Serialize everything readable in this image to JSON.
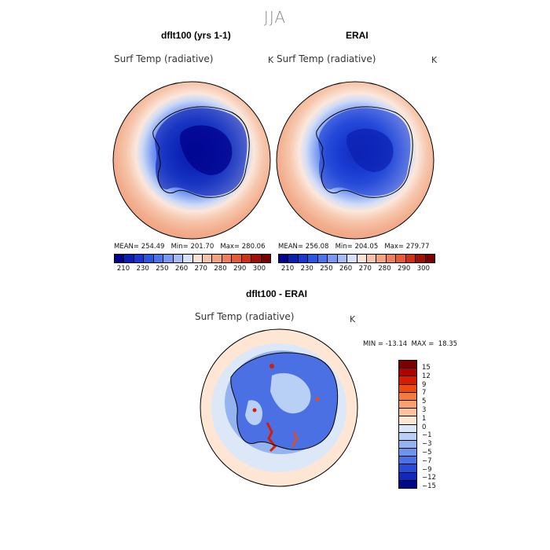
{
  "header": {
    "season": "JJA"
  },
  "panels": [
    {
      "title": "dflt100 (yrs 1-1)",
      "variable": "Surf Temp (radiative)",
      "units": "K",
      "stats": {
        "mean_label": "MEAN=",
        "mean": "254.49",
        "min_label": "Min=",
        "min": "201.70",
        "max_label": "Max=",
        "max": "280.06"
      }
    },
    {
      "title": "ERAI",
      "variable": "Surf Temp (radiative)",
      "units": "K",
      "stats": {
        "mean_label": "MEAN=",
        "mean": "256.08",
        "min_label": "Min=",
        "min": "204.05",
        "max_label": "Max=",
        "max": "279.77"
      }
    }
  ],
  "shared_colorbar": {
    "tick_labels": [
      "210",
      "230",
      "250",
      "260",
      "270",
      "280",
      "290",
      "300"
    ],
    "colors": [
      "#00008b",
      "#0a1fb0",
      "#1737d0",
      "#2a56e0",
      "#4b74ec",
      "#7898f2",
      "#a7bcf5",
      "#d6e0f7",
      "#f8e2d5",
      "#f5c4a8",
      "#f2a37f",
      "#ee7f5a",
      "#e65a38",
      "#cf3018",
      "#a00f08",
      "#7a0000"
    ]
  },
  "diff_panel": {
    "title": "dflt100 - ERAI",
    "variable": "Surf Temp (radiative)",
    "units": "K",
    "minmax": {
      "min_label": "MIN =",
      "min": "-13.14",
      "max_label": "MAX =",
      "max": "18.35"
    },
    "colorbar": {
      "tick_labels": [
        "15",
        "12",
        "9",
        "7",
        "5",
        "3",
        "1",
        "0",
        "−1",
        "−3",
        "−5",
        "−7",
        "−9",
        "−12",
        "−15"
      ],
      "colors": [
        "#7a0000",
        "#b00000",
        "#d81c00",
        "#ee4a10",
        "#f57a40",
        "#f8a070",
        "#fac4a0",
        "#fde6d4",
        "#dce8f8",
        "#b8d0f5",
        "#94b4f0",
        "#6f94ec",
        "#4a70e4",
        "#2a4ad8",
        "#1028c0",
        "#00088a"
      ]
    }
  }
}
